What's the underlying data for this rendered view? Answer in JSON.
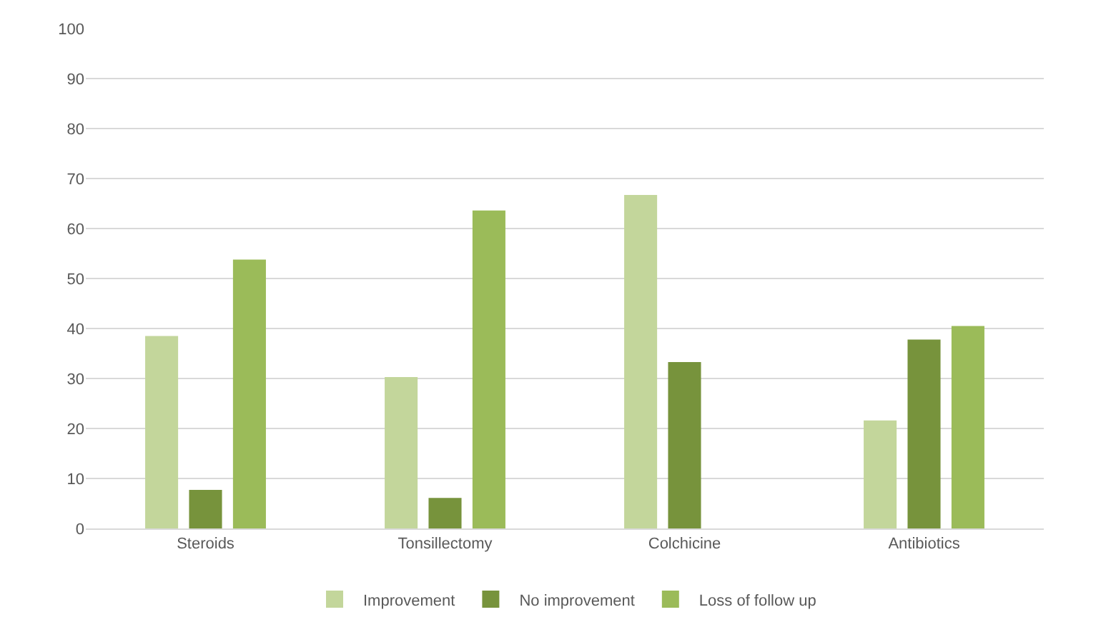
{
  "chart_data": {
    "type": "bar",
    "categories": [
      "Steroids",
      "Tonsillectomy",
      "Colchicine",
      "Antibiotics"
    ],
    "series": [
      {
        "name": "Improvement",
        "color": "#c3d69b",
        "values": [
          38.5,
          30.3,
          66.7,
          21.6
        ]
      },
      {
        "name": "No improvement",
        "color": "#77933c",
        "values": [
          7.7,
          6.1,
          33.3,
          37.8
        ]
      },
      {
        "name": "Loss of follow up",
        "color": "#9bbb59",
        "values": [
          53.8,
          63.6,
          0,
          40.5
        ]
      }
    ],
    "ylim": [
      0,
      100
    ],
    "yticks": [
      0,
      10,
      20,
      30,
      40,
      50,
      60,
      70,
      80,
      90,
      100
    ],
    "grid": "y",
    "legend": "bottom"
  }
}
